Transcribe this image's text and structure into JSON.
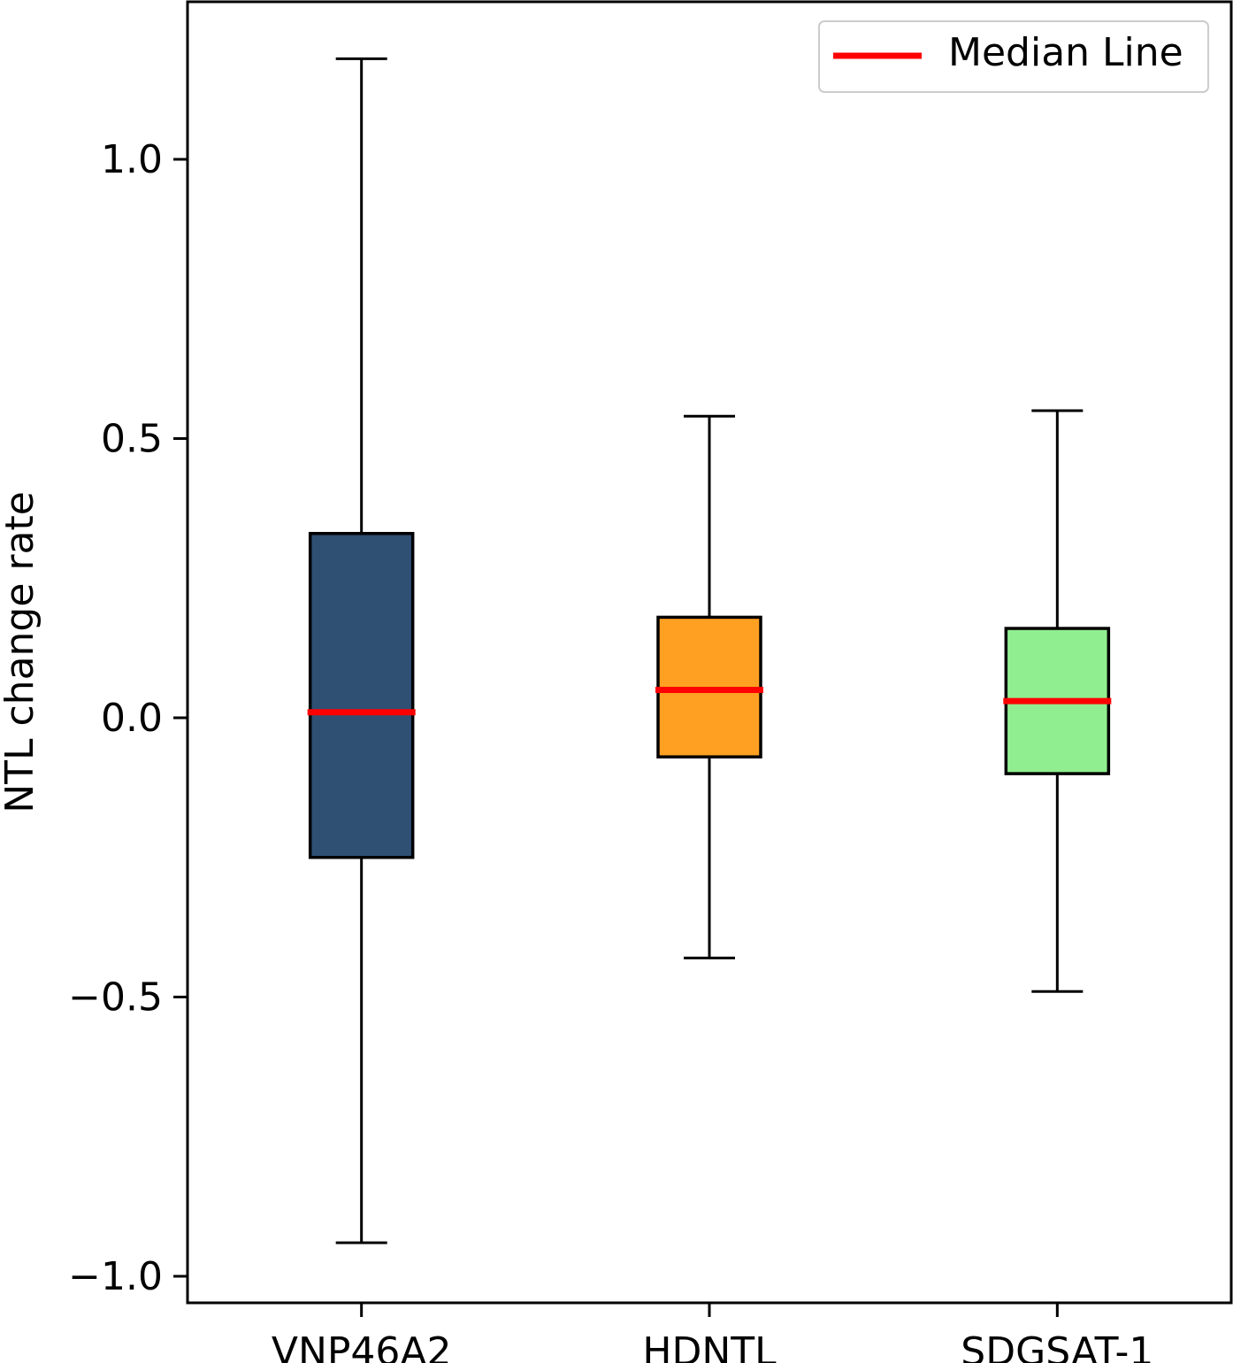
{
  "chart_data": {
    "type": "box",
    "title": "",
    "xlabel": "",
    "ylabel": "NTL change rate",
    "categories": [
      "VNP46A2",
      "HDNTL",
      "SDGSAT-1"
    ],
    "yticks": [
      -1.0,
      -0.5,
      0.0,
      0.5,
      1.0
    ],
    "ytick_labels": [
      "−1.0",
      "−0.5",
      "0.0",
      "0.5",
      "1.0"
    ],
    "ylim": [
      -1.04,
      1.28
    ],
    "grid": false,
    "median_color": "#ff0000",
    "boxes": [
      {
        "name": "VNP46A2",
        "whisker_low": -0.94,
        "q1": -0.25,
        "median": 0.01,
        "q3": 0.33,
        "whisker_high": 1.18,
        "color": "#2f4f73"
      },
      {
        "name": "HDNTL",
        "whisker_low": -0.43,
        "q1": -0.07,
        "median": 0.05,
        "q3": 0.18,
        "whisker_high": 0.54,
        "color": "#ffa022"
      },
      {
        "name": "SDGSAT-1",
        "whisker_low": -0.49,
        "q1": -0.1,
        "median": 0.03,
        "q3": 0.16,
        "whisker_high": 0.55,
        "color": "#90ee90"
      }
    ],
    "legend": {
      "position": "top-right",
      "entries": [
        {
          "label": "Median Line",
          "color": "#ff0000"
        }
      ]
    }
  }
}
